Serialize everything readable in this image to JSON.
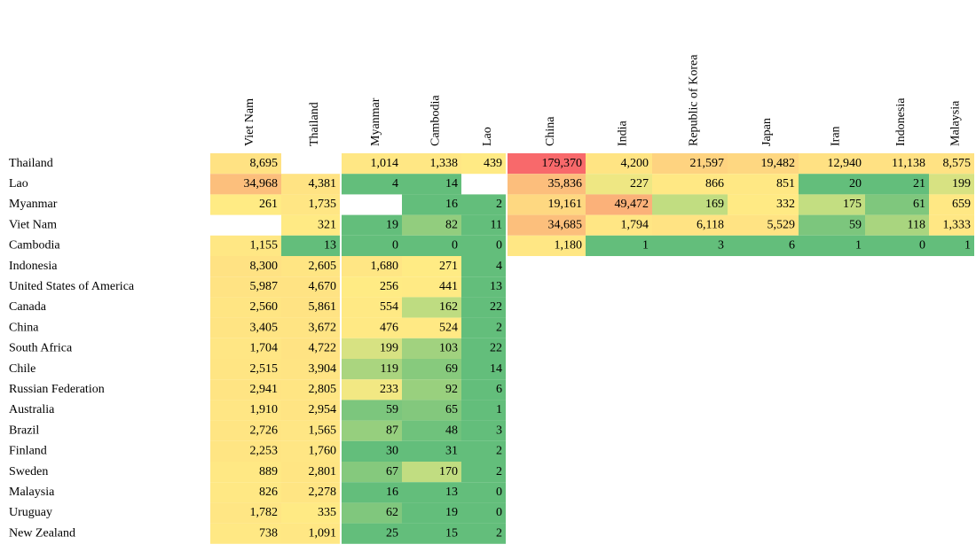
{
  "table": {
    "columns": [
      "Viet Nam",
      "Thailand",
      "Myanmar",
      "Cambodia",
      "Lao",
      "China",
      "India",
      "Republic of Korea",
      "Japan",
      "Iran",
      "Indonesia",
      "Malaysia"
    ],
    "rows": [
      {
        "label": "Thailand",
        "cells": [
          "8,695",
          null,
          "1,014",
          "1,338",
          "439",
          "179,370",
          "4,200",
          "21,597",
          "19,482",
          "12,940",
          "11,138",
          "8,575"
        ]
      },
      {
        "label": "Lao",
        "cells": [
          "34,968",
          "4,381",
          "4",
          "14",
          null,
          "35,836",
          "227",
          "866",
          "851",
          "20",
          "21",
          "199"
        ]
      },
      {
        "label": "Myanmar",
        "cells": [
          "261",
          "1,735",
          null,
          "16",
          "2",
          "19,161",
          "49,472",
          "169",
          "332",
          "175",
          "61",
          "659"
        ]
      },
      {
        "label": "Viet Nam",
        "cells": [
          null,
          "321",
          "19",
          "82",
          "11",
          "34,685",
          "1,794",
          "6,118",
          "5,529",
          "59",
          "118",
          "1,333"
        ]
      },
      {
        "label": "Cambodia",
        "cells": [
          "1,155",
          "13",
          "0",
          "0",
          "0",
          "1,180",
          "1",
          "3",
          "6",
          "1",
          "0",
          "1"
        ]
      },
      {
        "label": "Indonesia",
        "cells": [
          "8,300",
          "2,605",
          "1,680",
          "271",
          "4"
        ]
      },
      {
        "label": "United States of America",
        "cells": [
          "5,987",
          "4,670",
          "256",
          "441",
          "13"
        ]
      },
      {
        "label": "Canada",
        "cells": [
          "2,560",
          "5,861",
          "554",
          "162",
          "22"
        ]
      },
      {
        "label": "China",
        "cells": [
          "3,405",
          "3,672",
          "476",
          "524",
          "2"
        ]
      },
      {
        "label": "South Africa",
        "cells": [
          "1,704",
          "4,722",
          "199",
          "103",
          "22"
        ]
      },
      {
        "label": "Chile",
        "cells": [
          "2,515",
          "3,904",
          "119",
          "69",
          "14"
        ]
      },
      {
        "label": "Russian Federation",
        "cells": [
          "2,941",
          "2,805",
          "233",
          "92",
          "6"
        ]
      },
      {
        "label": "Australia",
        "cells": [
          "1,910",
          "2,954",
          "59",
          "65",
          "1"
        ]
      },
      {
        "label": "Brazil",
        "cells": [
          "2,726",
          "1,565",
          "87",
          "48",
          "3"
        ]
      },
      {
        "label": "Finland",
        "cells": [
          "2,253",
          "1,760",
          "30",
          "31",
          "2"
        ]
      },
      {
        "label": "Sweden",
        "cells": [
          "889",
          "2,801",
          "67",
          "170",
          "2"
        ]
      },
      {
        "label": "Malaysia",
        "cells": [
          "826",
          "2,278",
          "16",
          "13",
          "0"
        ]
      },
      {
        "label": "Uruguay",
        "cells": [
          "1,782",
          "335",
          "62",
          "19",
          "0"
        ]
      },
      {
        "label": "New Zealand",
        "cells": [
          "738",
          "1,091",
          "25",
          "15",
          "2"
        ]
      }
    ]
  }
}
